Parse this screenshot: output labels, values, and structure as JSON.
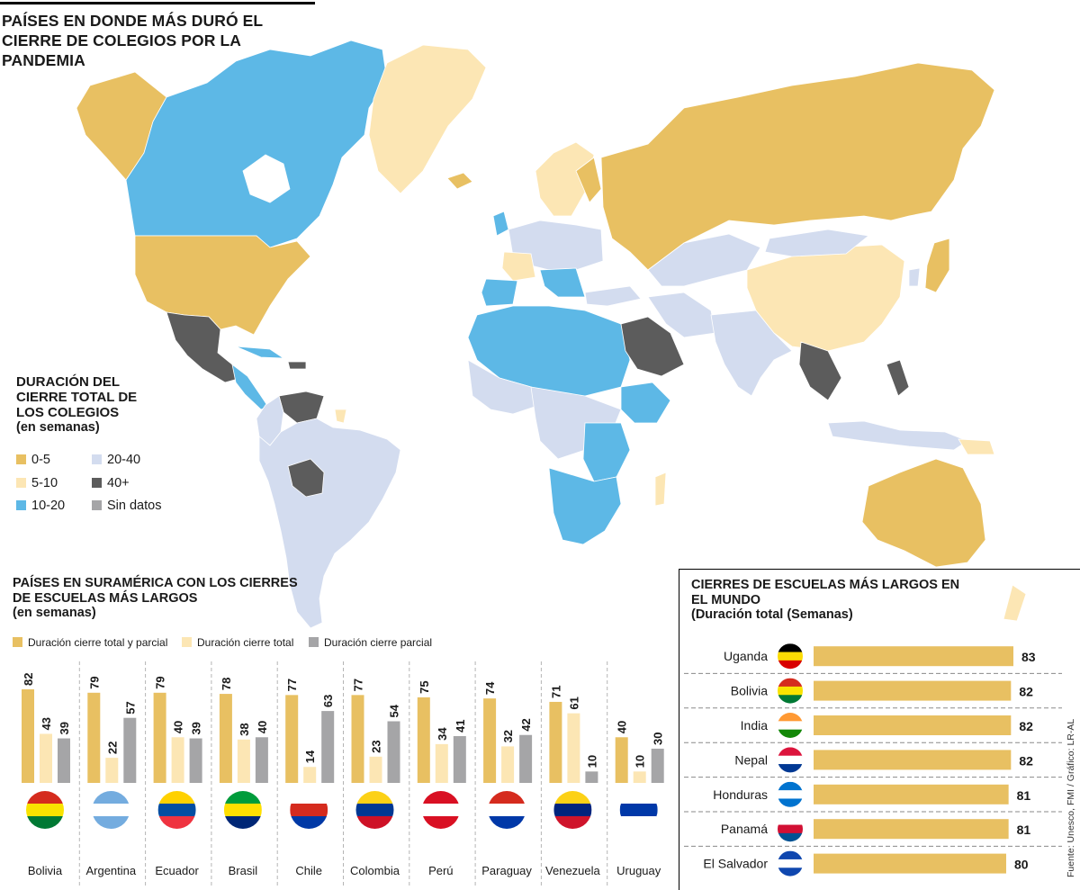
{
  "header": {
    "title": "PAÍSES EN DONDE MÁS DURÓ EL CIERRE DE COLEGIOS POR LA PANDEMIA"
  },
  "colors": {
    "c0_5": "#e8c062",
    "c5_10": "#fce6b4",
    "c10_20": "#5db8e6",
    "c20_40": "#d3dcef",
    "c40": "#5c5c5c",
    "sin_datos": "#a5a5a7",
    "total_parcial": "#e8c062",
    "total": "#fce6b4",
    "parcial": "#a5a5a7"
  },
  "map_legend": {
    "title": "DURACIÓN DEL CIERRE TOTAL DE LOS COLEGIOS",
    "subtitle": "(en semanas)",
    "items": [
      {
        "label": "0-5",
        "color": "#e8c062"
      },
      {
        "label": "5-10",
        "color": "#fce6b4"
      },
      {
        "label": "10-20",
        "color": "#5db8e6"
      },
      {
        "label": "20-40",
        "color": "#d3dcef"
      },
      {
        "label": "40+",
        "color": "#5c5c5c"
      },
      {
        "label": "Sin datos",
        "color": "#a5a5a7"
      }
    ]
  },
  "south_america": {
    "title": "PAÍSES EN SURAMÉRICA CON LOS CIERRES DE ESCUELAS MÁS LARGOS",
    "subtitle": "(en semanas)"
  },
  "world": {
    "title": "CIERRES DE ESCUELAS MÁS LARGOS EN EL MUNDO",
    "subtitle": "(Duración total (Semanas)"
  },
  "source": "Fuente: Unesco, FMI / Gráfico: LR-AL",
  "chart_data": [
    {
      "type": "bar",
      "title": "PAÍSES EN SURAMÉRICA CON LOS CIERRES DE ESCUELAS MÁS LARGOS",
      "ylabel": "(en semanas)",
      "categories": [
        "Bolivia",
        "Argentina",
        "Ecuador",
        "Brasil",
        "Chile",
        "Colombia",
        "Perú",
        "Paraguay",
        "Venezuela",
        "Uruguay"
      ],
      "series": [
        {
          "name": "Duración cierre total y parcial",
          "color": "#e8c062",
          "values": [
            82,
            79,
            79,
            78,
            77,
            77,
            75,
            74,
            71,
            40
          ]
        },
        {
          "name": "Duración cierre total",
          "color": "#fce6b4",
          "values": [
            43,
            22,
            40,
            38,
            14,
            23,
            34,
            32,
            61,
            10
          ]
        },
        {
          "name": "Duración cierre parcial",
          "color": "#a5a5a7",
          "values": [
            39,
            57,
            39,
            40,
            63,
            54,
            41,
            42,
            10,
            30
          ]
        }
      ],
      "ylim": [
        0,
        82
      ]
    },
    {
      "type": "bar",
      "orientation": "horizontal",
      "title": "CIERRES DE ESCUELAS MÁS LARGOS EN EL MUNDO",
      "subtitle": "(Duración total (Semanas)",
      "categories": [
        "Uganda",
        "Bolivia",
        "India",
        "Nepal",
        "Honduras",
        "Panamá",
        "El Salvador"
      ],
      "values": [
        83,
        82,
        82,
        82,
        81,
        81,
        80
      ],
      "color": "#e8c062"
    }
  ]
}
